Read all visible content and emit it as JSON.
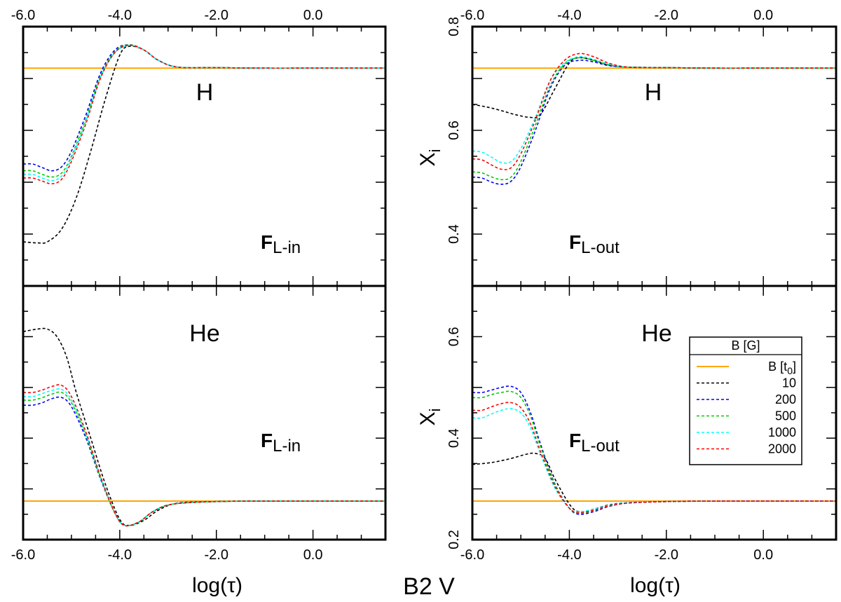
{
  "figure_title": "B2 V",
  "xlabel": "log(τ)",
  "ylabel": "X",
  "ylabel_sub": "i",
  "panel_labels": {
    "flux_prefix": "F",
    "in_sub": "L-in",
    "out_sub": "L-out",
    "H": "H",
    "He": "He"
  },
  "legend": {
    "title": "B [G]",
    "entries": [
      {
        "label": "B [t",
        "label_sub": "0",
        "label_tail": "]",
        "color": "#ffa500",
        "dash": "solid"
      },
      {
        "label": "10",
        "color": "#000000",
        "dash": "dashed"
      },
      {
        "label": "200",
        "color": "#0000ff",
        "dash": "dashed"
      },
      {
        "label": "500",
        "color": "#00cc00",
        "dash": "dashed"
      },
      {
        "label": "1000",
        "color": "#00ffff",
        "dash": "dashed"
      },
      {
        "label": "2000",
        "color": "#ff0000",
        "dash": "dashed"
      }
    ]
  },
  "chart_data": [
    {
      "type": "line",
      "panel": "top-left",
      "element": "H",
      "flux": "L-in",
      "xlim": [
        -6.0,
        1.5
      ],
      "ylim": [
        0.3,
        0.8
      ],
      "xticks": [
        -6.0,
        -4.0,
        -2.0,
        0.0
      ],
      "xtick_labels": [
        "-6.0",
        "-4.0",
        "-2.0",
        "0.0"
      ],
      "yticks": [],
      "ytick_labels": [],
      "series": [
        {
          "name": "B [t0]",
          "color": "#ffa500",
          "dash": "solid",
          "x": [
            -6.0,
            1.5
          ],
          "y": [
            0.72,
            0.72
          ]
        },
        {
          "name": "10",
          "color": "#000000",
          "dash": "dashed",
          "x": [
            -6.0,
            -5.7,
            -5.5,
            -5.2,
            -4.9,
            -4.6,
            -4.3,
            -4.0,
            -3.8,
            -3.5,
            -3.2,
            -2.8,
            -2.0,
            -1.0,
            0.0,
            1.5
          ],
          "y": [
            0.385,
            0.383,
            0.385,
            0.41,
            0.47,
            0.56,
            0.66,
            0.745,
            0.762,
            0.755,
            0.735,
            0.722,
            0.721,
            0.72,
            0.72,
            0.72
          ]
        },
        {
          "name": "200",
          "color": "#0000ff",
          "dash": "dashed",
          "x": [
            -6.0,
            -5.8,
            -5.6,
            -5.4,
            -5.2,
            -5.0,
            -4.7,
            -4.4,
            -4.1,
            -3.8,
            -3.5,
            -3.2,
            -2.8,
            -2.0,
            -1.0,
            0.0,
            1.5
          ],
          "y": [
            0.535,
            0.535,
            0.528,
            0.522,
            0.53,
            0.56,
            0.63,
            0.71,
            0.755,
            0.765,
            0.755,
            0.735,
            0.722,
            0.721,
            0.72,
            0.72,
            0.72
          ]
        },
        {
          "name": "500",
          "color": "#00cc00",
          "dash": "dashed",
          "x": [
            -6.0,
            -5.8,
            -5.6,
            -5.4,
            -5.2,
            -5.0,
            -4.7,
            -4.4,
            -4.1,
            -3.8,
            -3.5,
            -3.2,
            -2.8,
            -2.0,
            -1.0,
            0.0,
            1.5
          ],
          "y": [
            0.522,
            0.522,
            0.515,
            0.51,
            0.518,
            0.55,
            0.622,
            0.705,
            0.752,
            0.765,
            0.755,
            0.735,
            0.722,
            0.721,
            0.72,
            0.72,
            0.72
          ]
        },
        {
          "name": "1000",
          "color": "#00ffff",
          "dash": "dashed",
          "x": [
            -6.0,
            -5.8,
            -5.6,
            -5.4,
            -5.2,
            -5.0,
            -4.7,
            -4.4,
            -4.1,
            -3.8,
            -3.5,
            -3.2,
            -2.8,
            -2.0,
            -1.0,
            0.0,
            1.5
          ],
          "y": [
            0.515,
            0.515,
            0.508,
            0.503,
            0.512,
            0.545,
            0.618,
            0.702,
            0.75,
            0.764,
            0.755,
            0.735,
            0.722,
            0.721,
            0.72,
            0.72,
            0.72
          ]
        },
        {
          "name": "2000",
          "color": "#ff0000",
          "dash": "dashed",
          "x": [
            -6.0,
            -5.8,
            -5.6,
            -5.4,
            -5.2,
            -5.0,
            -4.7,
            -4.4,
            -4.1,
            -3.8,
            -3.5,
            -3.2,
            -2.8,
            -2.0,
            -1.0,
            0.0,
            1.5
          ],
          "y": [
            0.508,
            0.508,
            0.502,
            0.497,
            0.506,
            0.54,
            0.613,
            0.7,
            0.75,
            0.764,
            0.755,
            0.735,
            0.722,
            0.721,
            0.72,
            0.72,
            0.72
          ]
        }
      ]
    },
    {
      "type": "line",
      "panel": "top-right",
      "element": "H",
      "flux": "L-out",
      "xlim": [
        -6.0,
        1.5
      ],
      "ylim": [
        0.3,
        0.8
      ],
      "xticks": [
        -6.0,
        -4.0,
        -2.0,
        0.0
      ],
      "xtick_labels": [
        "-6.0",
        "-4.0",
        "-2.0",
        "0.0"
      ],
      "yticks": [
        0.4,
        0.6,
        0.8
      ],
      "ytick_labels": [
        "0.4",
        "0.6",
        "0.8"
      ],
      "series": [
        {
          "name": "B [t0]",
          "color": "#ffa500",
          "dash": "solid",
          "x": [
            -6.0,
            1.5
          ],
          "y": [
            0.72,
            0.72
          ]
        },
        {
          "name": "10",
          "color": "#000000",
          "dash": "dashed",
          "x": [
            -6.0,
            -5.7,
            -5.4,
            -5.1,
            -4.8,
            -4.6,
            -4.3,
            -4.0,
            -3.8,
            -3.5,
            -3.2,
            -2.8,
            -2.0,
            -1.0,
            0.0,
            1.5
          ],
          "y": [
            0.65,
            0.645,
            0.638,
            0.63,
            0.625,
            0.63,
            0.68,
            0.73,
            0.74,
            0.735,
            0.726,
            0.722,
            0.721,
            0.72,
            0.72,
            0.72
          ]
        },
        {
          "name": "200",
          "color": "#0000ff",
          "dash": "dashed",
          "x": [
            -6.0,
            -5.8,
            -5.6,
            -5.4,
            -5.2,
            -5.0,
            -4.7,
            -4.4,
            -4.1,
            -3.8,
            -3.5,
            -3.2,
            -2.8,
            -2.0,
            -1.0,
            0.0,
            1.5
          ],
          "y": [
            0.51,
            0.508,
            0.5,
            0.496,
            0.502,
            0.53,
            0.6,
            0.68,
            0.725,
            0.735,
            0.732,
            0.725,
            0.722,
            0.721,
            0.72,
            0.72,
            0.72
          ]
        },
        {
          "name": "500",
          "color": "#00cc00",
          "dash": "dashed",
          "x": [
            -6.0,
            -5.8,
            -5.6,
            -5.4,
            -5.2,
            -5.0,
            -4.7,
            -4.4,
            -4.1,
            -3.8,
            -3.5,
            -3.2,
            -2.8,
            -2.0,
            -1.0,
            0.0,
            1.5
          ],
          "y": [
            0.52,
            0.518,
            0.51,
            0.505,
            0.51,
            0.54,
            0.61,
            0.685,
            0.728,
            0.74,
            0.735,
            0.727,
            0.722,
            0.721,
            0.72,
            0.72,
            0.72
          ]
        },
        {
          "name": "1000",
          "color": "#00ffff",
          "dash": "dashed",
          "x": [
            -6.0,
            -5.8,
            -5.6,
            -5.4,
            -5.2,
            -5.0,
            -4.7,
            -4.4,
            -4.1,
            -3.8,
            -3.5,
            -3.2,
            -2.8,
            -2.0,
            -1.0,
            0.0,
            1.5
          ],
          "y": [
            0.56,
            0.558,
            0.548,
            0.538,
            0.54,
            0.565,
            0.625,
            0.695,
            0.73,
            0.742,
            0.737,
            0.728,
            0.722,
            0.721,
            0.72,
            0.72,
            0.72
          ]
        },
        {
          "name": "2000",
          "color": "#ff0000",
          "dash": "dashed",
          "x": [
            -6.0,
            -5.8,
            -5.6,
            -5.4,
            -5.2,
            -5.0,
            -4.7,
            -4.4,
            -4.1,
            -3.8,
            -3.5,
            -3.2,
            -2.8,
            -2.0,
            -1.0,
            0.0,
            1.5
          ],
          "y": [
            0.545,
            0.543,
            0.533,
            0.525,
            0.528,
            0.555,
            0.62,
            0.695,
            0.735,
            0.748,
            0.742,
            0.73,
            0.722,
            0.721,
            0.72,
            0.72,
            0.72
          ]
        }
      ]
    },
    {
      "type": "line",
      "panel": "bottom-left",
      "element": "He",
      "flux": "L-in",
      "xlim": [
        -6.0,
        1.5
      ],
      "ylim": [
        0.2,
        0.7
      ],
      "xticks": [
        -6.0,
        -4.0,
        -2.0,
        0.0
      ],
      "xtick_labels": [
        "-6.0",
        "-4.0",
        "-2.0",
        "0.0"
      ],
      "yticks": [],
      "ytick_labels": [],
      "series": [
        {
          "name": "B [t0]",
          "color": "#ffa500",
          "dash": "solid",
          "x": [
            -6.0,
            1.5
          ],
          "y": [
            0.276,
            0.276
          ]
        },
        {
          "name": "10",
          "color": "#000000",
          "dash": "dashed",
          "x": [
            -6.0,
            -5.7,
            -5.5,
            -5.3,
            -5.1,
            -4.9,
            -4.6,
            -4.3,
            -4.0,
            -3.8,
            -3.5,
            -3.2,
            -2.8,
            -2.0,
            -1.0,
            0.0,
            1.5
          ],
          "y": [
            0.61,
            0.615,
            0.615,
            0.6,
            0.56,
            0.49,
            0.4,
            0.31,
            0.24,
            0.228,
            0.238,
            0.258,
            0.272,
            0.275,
            0.276,
            0.276,
            0.276
          ]
        },
        {
          "name": "200",
          "color": "#0000ff",
          "dash": "dashed",
          "x": [
            -6.0,
            -5.8,
            -5.6,
            -5.4,
            -5.2,
            -5.0,
            -4.7,
            -4.4,
            -4.1,
            -3.9,
            -3.6,
            -3.3,
            -2.9,
            -2.0,
            -1.0,
            0.0,
            1.5
          ],
          "y": [
            0.465,
            0.465,
            0.47,
            0.478,
            0.48,
            0.462,
            0.4,
            0.32,
            0.252,
            0.228,
            0.235,
            0.256,
            0.27,
            0.275,
            0.276,
            0.276,
            0.276
          ]
        },
        {
          "name": "500",
          "color": "#00cc00",
          "dash": "dashed",
          "x": [
            -6.0,
            -5.8,
            -5.6,
            -5.4,
            -5.2,
            -5.0,
            -4.7,
            -4.4,
            -4.1,
            -3.9,
            -3.6,
            -3.3,
            -2.9,
            -2.0,
            -1.0,
            0.0,
            1.5
          ],
          "y": [
            0.475,
            0.475,
            0.48,
            0.487,
            0.49,
            0.47,
            0.405,
            0.322,
            0.252,
            0.228,
            0.235,
            0.256,
            0.27,
            0.275,
            0.276,
            0.276,
            0.276
          ]
        },
        {
          "name": "1000",
          "color": "#00ffff",
          "dash": "dashed",
          "x": [
            -6.0,
            -5.8,
            -5.6,
            -5.4,
            -5.2,
            -5.0,
            -4.7,
            -4.4,
            -4.1,
            -3.9,
            -3.6,
            -3.3,
            -2.9,
            -2.0,
            -1.0,
            0.0,
            1.5
          ],
          "y": [
            0.482,
            0.482,
            0.488,
            0.494,
            0.496,
            0.475,
            0.408,
            0.323,
            0.252,
            0.228,
            0.235,
            0.256,
            0.27,
            0.275,
            0.276,
            0.276,
            0.276
          ]
        },
        {
          "name": "2000",
          "color": "#ff0000",
          "dash": "dashed",
          "x": [
            -6.0,
            -5.8,
            -5.6,
            -5.4,
            -5.2,
            -5.0,
            -4.7,
            -4.4,
            -4.1,
            -3.9,
            -3.6,
            -3.3,
            -2.9,
            -2.0,
            -1.0,
            0.0,
            1.5
          ],
          "y": [
            0.49,
            0.49,
            0.495,
            0.502,
            0.504,
            0.482,
            0.412,
            0.325,
            0.253,
            0.228,
            0.235,
            0.256,
            0.27,
            0.275,
            0.276,
            0.276,
            0.276
          ]
        }
      ]
    },
    {
      "type": "line",
      "panel": "bottom-right",
      "element": "He",
      "flux": "L-out",
      "xlim": [
        -6.0,
        1.5
      ],
      "ylim": [
        0.2,
        0.7
      ],
      "xticks": [
        -6.0,
        -4.0,
        -2.0,
        0.0
      ],
      "xtick_labels": [
        "-6.0",
        "-4.0",
        "-2.0",
        "0.0"
      ],
      "yticks": [
        0.2,
        0.4,
        0.6
      ],
      "ytick_labels": [
        "0.2",
        "0.4",
        "0.6"
      ],
      "series": [
        {
          "name": "B [t0]",
          "color": "#ffa500",
          "dash": "solid",
          "x": [
            -6.0,
            1.5
          ],
          "y": [
            0.276,
            0.276
          ]
        },
        {
          "name": "10",
          "color": "#000000",
          "dash": "dashed",
          "x": [
            -6.0,
            -5.6,
            -5.2,
            -4.9,
            -4.7,
            -4.5,
            -4.3,
            -4.0,
            -3.8,
            -3.5,
            -3.2,
            -2.8,
            -2.0,
            -1.0,
            0.0,
            1.5
          ],
          "y": [
            0.348,
            0.352,
            0.36,
            0.368,
            0.37,
            0.36,
            0.32,
            0.27,
            0.255,
            0.26,
            0.268,
            0.273,
            0.275,
            0.276,
            0.276,
            0.276
          ]
        },
        {
          "name": "200",
          "color": "#0000ff",
          "dash": "dashed",
          "x": [
            -6.0,
            -5.8,
            -5.6,
            -5.4,
            -5.2,
            -5.0,
            -4.8,
            -4.6,
            -4.3,
            -4.0,
            -3.8,
            -3.5,
            -3.2,
            -2.8,
            -2.0,
            -1.0,
            0.0,
            1.5
          ],
          "y": [
            0.49,
            0.49,
            0.495,
            0.5,
            0.502,
            0.49,
            0.45,
            0.39,
            0.31,
            0.262,
            0.25,
            0.255,
            0.265,
            0.272,
            0.275,
            0.276,
            0.276,
            0.276
          ]
        },
        {
          "name": "500",
          "color": "#00cc00",
          "dash": "dashed",
          "x": [
            -6.0,
            -5.8,
            -5.6,
            -5.4,
            -5.2,
            -5.0,
            -4.8,
            -4.6,
            -4.3,
            -4.0,
            -3.8,
            -3.5,
            -3.2,
            -2.8,
            -2.0,
            -1.0,
            0.0,
            1.5
          ],
          "y": [
            0.48,
            0.48,
            0.486,
            0.49,
            0.492,
            0.48,
            0.443,
            0.385,
            0.308,
            0.262,
            0.252,
            0.257,
            0.266,
            0.272,
            0.275,
            0.276,
            0.276,
            0.276
          ]
        },
        {
          "name": "1000",
          "color": "#00ffff",
          "dash": "dashed",
          "x": [
            -6.0,
            -5.8,
            -5.6,
            -5.4,
            -5.2,
            -5.0,
            -4.8,
            -4.6,
            -4.3,
            -4.0,
            -3.8,
            -3.5,
            -3.2,
            -2.8,
            -2.0,
            -1.0,
            0.0,
            1.5
          ],
          "y": [
            0.44,
            0.44,
            0.448,
            0.455,
            0.458,
            0.45,
            0.42,
            0.37,
            0.302,
            0.262,
            0.255,
            0.26,
            0.267,
            0.273,
            0.275,
            0.276,
            0.276,
            0.276
          ]
        },
        {
          "name": "2000",
          "color": "#ff0000",
          "dash": "dashed",
          "x": [
            -6.0,
            -5.8,
            -5.6,
            -5.4,
            -5.2,
            -5.0,
            -4.8,
            -4.6,
            -4.3,
            -4.0,
            -3.8,
            -3.5,
            -3.2,
            -2.8,
            -2.0,
            -1.0,
            0.0,
            1.5
          ],
          "y": [
            0.455,
            0.455,
            0.462,
            0.468,
            0.47,
            0.46,
            0.428,
            0.375,
            0.305,
            0.262,
            0.253,
            0.258,
            0.266,
            0.272,
            0.275,
            0.276,
            0.276,
            0.276
          ]
        }
      ]
    }
  ]
}
